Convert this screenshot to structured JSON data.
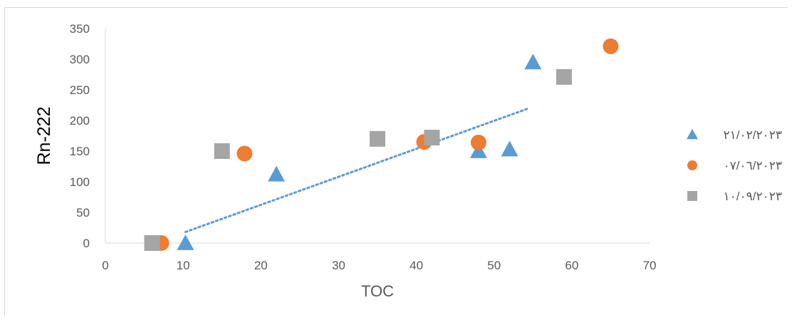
{
  "chart_data": {
    "type": "scatter",
    "xlabel": "TOC",
    "ylabel": "Rn-222",
    "xlim": [
      0,
      70
    ],
    "ylim": [
      0,
      350
    ],
    "xticks": [
      0,
      10,
      20,
      30,
      40,
      50,
      60,
      70
    ],
    "yticks": [
      0,
      50,
      100,
      150,
      200,
      250,
      300,
      350
    ],
    "grid": false,
    "legend_position": "right",
    "series": [
      {
        "name": "٢١/٠٢/٢٠٢٣",
        "marker": "triangle",
        "color": "#5b9bd5",
        "points": [
          [
            10.3,
            0
          ],
          [
            22,
            112
          ],
          [
            48,
            150
          ],
          [
            52,
            153
          ],
          [
            55,
            295
          ]
        ]
      },
      {
        "name": "٠٧/٠٦/٢٠٢٣",
        "marker": "circle",
        "color": "#ed7d31",
        "points": [
          [
            7.2,
            0
          ],
          [
            17.9,
            146
          ],
          [
            41,
            165
          ],
          [
            48,
            164
          ],
          [
            65,
            321
          ]
        ]
      },
      {
        "name": "١٠/٠٩/٢٠٢٣",
        "marker": "square",
        "color": "#a5a5a5",
        "points": [
          [
            6,
            0
          ],
          [
            15,
            150
          ],
          [
            35,
            170
          ],
          [
            42,
            172
          ],
          [
            59,
            271
          ]
        ]
      }
    ],
    "trendline": {
      "style": "dotted",
      "color": "#5b9bd5",
      "points": [
        [
          10.3,
          18
        ],
        [
          54.5,
          220
        ]
      ]
    }
  }
}
